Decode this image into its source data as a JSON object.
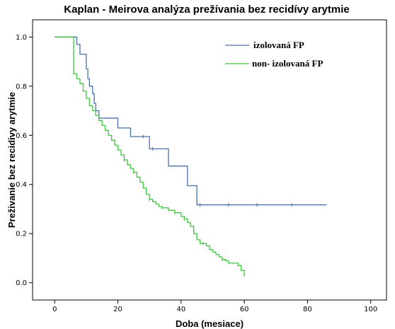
{
  "chart_data": {
    "type": "line",
    "title": "Kaplan - Meirova analýza prežívania bez recidívy arytmie",
    "xlabel": "Doba (mesiace)",
    "ylabel": "Preživanie bez recidivy arytmie",
    "xlim": [
      -7,
      105
    ],
    "ylim": [
      -0.07,
      1.07
    ],
    "xticks": [
      0,
      20,
      40,
      60,
      80,
      100
    ],
    "yticks": [
      0.0,
      0.2,
      0.4,
      0.6,
      0.8,
      1.0
    ],
    "ytick_labels": [
      "0.0",
      "0.2",
      "0.4",
      "0.6",
      "0.8",
      "1.0"
    ],
    "grid": false,
    "legend_position": "top-right",
    "series": [
      {
        "name": "izolovaná FP",
        "color": "#4a6fa5",
        "step": true,
        "x": [
          0,
          7,
          8,
          10,
          10.5,
          11,
          12,
          12.5,
          13,
          14,
          15,
          20,
          24,
          30,
          36,
          42,
          45,
          86
        ],
        "y": [
          1.0,
          0.97,
          0.93,
          0.87,
          0.83,
          0.8,
          0.77,
          0.73,
          0.7,
          0.67,
          0.67,
          0.63,
          0.595,
          0.545,
          0.475,
          0.395,
          0.317,
          0.317
        ],
        "censor_x": [
          28,
          31,
          46,
          55,
          64,
          75
        ]
      },
      {
        "name": "non- izolovaná FP",
        "color": "#3ec43e",
        "step": true,
        "x": [
          0,
          6,
          7,
          8,
          9,
          10,
          11,
          12,
          13,
          14,
          15,
          16,
          17,
          18,
          19,
          20,
          21,
          22,
          23,
          24,
          25,
          26,
          27,
          28,
          29,
          30,
          31,
          32,
          33,
          34,
          36,
          38,
          40,
          41,
          42,
          43,
          44,
          45,
          46,
          48,
          49,
          50,
          51,
          52,
          53,
          54,
          55,
          56,
          58,
          59,
          60
        ],
        "y": [
          1.0,
          0.85,
          0.83,
          0.81,
          0.78,
          0.75,
          0.72,
          0.7,
          0.68,
          0.66,
          0.64,
          0.62,
          0.6,
          0.58,
          0.56,
          0.54,
          0.52,
          0.5,
          0.48,
          0.465,
          0.45,
          0.43,
          0.41,
          0.385,
          0.36,
          0.34,
          0.33,
          0.32,
          0.31,
          0.305,
          0.295,
          0.285,
          0.27,
          0.26,
          0.245,
          0.23,
          0.2,
          0.175,
          0.16,
          0.15,
          0.135,
          0.125,
          0.115,
          0.105,
          0.095,
          0.09,
          0.08,
          0.08,
          0.07,
          0.05,
          0.025
        ],
        "censor_x": [
          22,
          25,
          30,
          34,
          38,
          41,
          47,
          53
        ]
      }
    ]
  }
}
